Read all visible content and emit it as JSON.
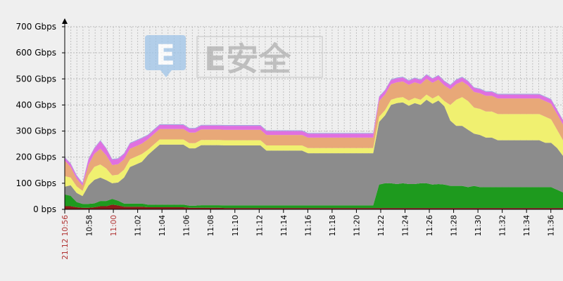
{
  "chart_data": {
    "type": "area",
    "title": "",
    "xlabel": "",
    "ylabel": "",
    "ylim": [
      0,
      700
    ],
    "x_range_minutes": [
      0,
      41
    ],
    "y_ticks": [
      "0 bps",
      "100 Gbps",
      "200 Gbps",
      "300 Gbps",
      "400 Gbps",
      "500 Gbps",
      "600 Gbps",
      "700 Gbps"
    ],
    "x_ticks": [
      {
        "label": "21.12 10:56",
        "minute": 0,
        "highlight": true
      },
      {
        "label": "10:58",
        "minute": 2,
        "highlight": false
      },
      {
        "label": "11:00",
        "minute": 4,
        "highlight": true
      },
      {
        "label": "11:02",
        "minute": 6,
        "highlight": false
      },
      {
        "label": "11:04",
        "minute": 8,
        "highlight": false
      },
      {
        "label": "11:06",
        "minute": 10,
        "highlight": false
      },
      {
        "label": "11:08",
        "minute": 12,
        "highlight": false
      },
      {
        "label": "11:10",
        "minute": 14,
        "highlight": false
      },
      {
        "label": "11:12",
        "minute": 16,
        "highlight": false
      },
      {
        "label": "11:14",
        "minute": 18,
        "highlight": false
      },
      {
        "label": "11:16",
        "minute": 20,
        "highlight": false
      },
      {
        "label": "11:18",
        "minute": 22,
        "highlight": false
      },
      {
        "label": "11:20",
        "minute": 24,
        "highlight": false
      },
      {
        "label": "11:22",
        "minute": 26,
        "highlight": false
      },
      {
        "label": "11:24",
        "minute": 28,
        "highlight": false
      },
      {
        "label": "11:26",
        "minute": 30,
        "highlight": false
      },
      {
        "label": "11:28",
        "minute": 32,
        "highlight": false
      },
      {
        "label": "11:30",
        "minute": 34,
        "highlight": false
      },
      {
        "label": "11:32",
        "minute": 36,
        "highlight": false
      },
      {
        "label": "11:34",
        "minute": 38,
        "highlight": false
      },
      {
        "label": "11:36",
        "minute": 40,
        "highlight": false
      }
    ],
    "grid": true,
    "legend": "none",
    "unit": "Gbps",
    "series_colors": [
      "#8b1a1a",
      "#1e9a1e",
      "#8c8c8c",
      "#f0f070",
      "#e8a878",
      "#e070e0",
      "#a0a0e0"
    ],
    "series": [
      {
        "values": [
          12,
          12,
          8,
          6,
          6,
          8,
          12,
          12,
          18,
          15,
          10,
          10,
          10,
          10,
          8,
          8,
          8,
          8,
          8,
          8,
          8,
          6,
          6,
          6,
          6,
          6,
          6,
          5,
          5,
          5,
          5,
          5,
          5,
          5,
          5,
          5,
          5,
          5,
          5,
          5,
          5,
          5,
          5,
          5,
          5,
          5,
          5,
          5,
          5,
          5,
          5,
          5,
          5,
          5,
          5,
          5,
          5,
          5,
          5,
          5,
          5,
          5,
          5,
          5,
          5,
          5,
          5,
          5,
          5,
          5,
          5,
          5,
          5,
          5,
          5,
          5,
          5,
          5,
          5,
          5,
          5,
          5,
          5,
          5,
          5
        ]
      },
      {
        "values": [
          45,
          40,
          20,
          15,
          15,
          15,
          20,
          20,
          22,
          18,
          12,
          12,
          12,
          12,
          10,
          10,
          10,
          10,
          10,
          10,
          10,
          8,
          8,
          10,
          10,
          10,
          10,
          10,
          10,
          10,
          10,
          10,
          10,
          10,
          10,
          10,
          10,
          10,
          10,
          10,
          10,
          10,
          10,
          10,
          10,
          10,
          10,
          10,
          10,
          10,
          10,
          10,
          10,
          90,
          95,
          95,
          92,
          95,
          92,
          92,
          95,
          95,
          90,
          92,
          90,
          85,
          85,
          85,
          80,
          85,
          80,
          80,
          80,
          80,
          80,
          80,
          80,
          80,
          80,
          80,
          80,
          80,
          80,
          70,
          60
        ]
      },
      {
        "values": [
          30,
          40,
          35,
          30,
          70,
          90,
          90,
          80,
          60,
          70,
          100,
          140,
          150,
          160,
          190,
          210,
          230,
          230,
          230,
          230,
          230,
          220,
          220,
          230,
          230,
          230,
          230,
          230,
          230,
          230,
          230,
          230,
          230,
          230,
          210,
          210,
          210,
          210,
          210,
          210,
          210,
          200,
          200,
          200,
          200,
          200,
          200,
          200,
          200,
          200,
          200,
          200,
          200,
          240,
          260,
          300,
          310,
          310,
          300,
          310,
          300,
          320,
          310,
          320,
          300,
          250,
          230,
          230,
          220,
          200,
          200,
          190,
          190,
          180,
          180,
          180,
          180,
          180,
          180,
          180,
          180,
          170,
          170,
          160,
          140
        ]
      },
      {
        "values": [
          40,
          30,
          25,
          20,
          40,
          50,
          50,
          45,
          30,
          30,
          30,
          30,
          30,
          30,
          20,
          20,
          20,
          20,
          20,
          20,
          20,
          20,
          20,
          20,
          20,
          20,
          20,
          20,
          20,
          20,
          20,
          20,
          20,
          20,
          20,
          20,
          20,
          20,
          20,
          20,
          20,
          20,
          20,
          20,
          20,
          20,
          20,
          20,
          20,
          20,
          20,
          20,
          20,
          20,
          20,
          20,
          20,
          20,
          20,
          20,
          20,
          20,
          20,
          20,
          20,
          60,
          100,
          110,
          110,
          100,
          100,
          100,
          100,
          100,
          100,
          100,
          100,
          100,
          100,
          100,
          100,
          100,
          90,
          70,
          60
        ]
      },
      {
        "values": [
          60,
          40,
          30,
          20,
          40,
          50,
          60,
          50,
          40,
          40,
          40,
          40,
          40,
          40,
          40,
          40,
          40,
          40,
          40,
          40,
          40,
          40,
          40,
          40,
          40,
          40,
          40,
          40,
          40,
          40,
          40,
          40,
          40,
          40,
          40,
          40,
          40,
          40,
          40,
          40,
          40,
          40,
          40,
          40,
          40,
          40,
          40,
          40,
          40,
          40,
          40,
          40,
          40,
          60,
          60,
          60,
          60,
          60,
          60,
          60,
          60,
          60,
          60,
          60,
          60,
          60,
          60,
          60,
          60,
          60,
          60,
          60,
          60,
          60,
          60,
          60,
          60,
          60,
          60,
          60,
          60,
          60,
          60,
          60,
          60
        ]
      },
      {
        "values": [
          10,
          12,
          10,
          8,
          20,
          20,
          30,
          25,
          20,
          20,
          20,
          20,
          20,
          20,
          15,
          15,
          15,
          15,
          15,
          15,
          15,
          15,
          15,
          15,
          15,
          15,
          15,
          15,
          15,
          15,
          15,
          15,
          15,
          15,
          15,
          15,
          15,
          15,
          15,
          15,
          15,
          15,
          15,
          15,
          15,
          15,
          15,
          15,
          15,
          15,
          15,
          15,
          15,
          15,
          15,
          15,
          15,
          15,
          15,
          15,
          15,
          15,
          15,
          15,
          15,
          15,
          15,
          15,
          15,
          15,
          15,
          15,
          15,
          15,
          15,
          15,
          15,
          15,
          15,
          15,
          15,
          15,
          15,
          15,
          15
        ]
      },
      {
        "values": [
          3,
          3,
          3,
          3,
          3,
          3,
          3,
          3,
          3,
          3,
          3,
          3,
          3,
          3,
          3,
          3,
          3,
          3,
          3,
          3,
          3,
          3,
          3,
          3,
          3,
          3,
          3,
          3,
          3,
          3,
          3,
          3,
          3,
          3,
          3,
          3,
          3,
          3,
          3,
          3,
          3,
          3,
          3,
          3,
          3,
          3,
          3,
          3,
          3,
          3,
          3,
          3,
          3,
          3,
          3,
          3,
          3,
          3,
          3,
          3,
          3,
          3,
          3,
          3,
          3,
          3,
          3,
          3,
          3,
          3,
          3,
          3,
          3,
          3,
          3,
          3,
          3,
          3,
          3,
          3,
          3,
          3,
          3,
          3,
          3
        ]
      }
    ]
  },
  "watermark": {
    "badge_letter": "E",
    "text": "E安全",
    "badge_color": "#9ec4e8"
  }
}
